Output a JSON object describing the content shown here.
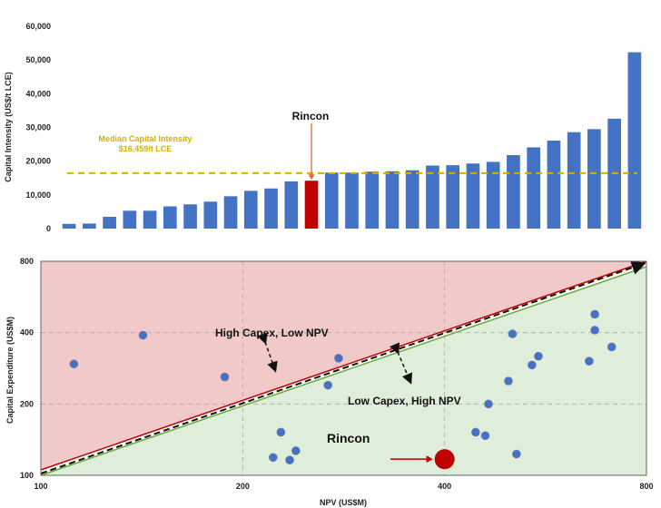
{
  "chart_data": [
    {
      "type": "bar",
      "ylabel": "Capital Intensity (US$/t LCE)",
      "ylim": [
        0,
        60000
      ],
      "yticks": [
        "0",
        "10,000",
        "20,000",
        "30,000",
        "40,000",
        "50,000",
        "60,000"
      ],
      "values": [
        1400,
        1500,
        3500,
        5300,
        5300,
        6600,
        7200,
        8000,
        9600,
        11200,
        11900,
        14000,
        14200,
        16600,
        16600,
        16900,
        17000,
        17300,
        18700,
        18800,
        19300,
        19800,
        21800,
        24100,
        26100,
        28600,
        29500,
        32600,
        52300
      ],
      "highlight_index": 12,
      "colors": {
        "bar": "#4472c4",
        "highlight": "#c00000",
        "median": "#d4b000",
        "callout": "#e8603c"
      },
      "median": {
        "value": 16459,
        "label_line1": "Median Capital Intensity",
        "label_line2": "$16,459/t LCE"
      },
      "callout": "Rincon"
    },
    {
      "type": "scatter",
      "xlabel": "NPV (US$M)",
      "ylabel": "Capital Expenditure (US$M)",
      "xticks": [
        "100",
        "200",
        "400",
        "800"
      ],
      "yticks": [
        "100",
        "200",
        "400",
        "800"
      ],
      "scale": "log",
      "xlim": [
        100,
        800
      ],
      "ylim": [
        100,
        800
      ],
      "points": [
        {
          "x": 112,
          "y": 295
        },
        {
          "x": 142,
          "y": 390
        },
        {
          "x": 188,
          "y": 260
        },
        {
          "x": 228,
          "y": 152
        },
        {
          "x": 222,
          "y": 119
        },
        {
          "x": 235,
          "y": 116
        },
        {
          "x": 240,
          "y": 127
        },
        {
          "x": 268,
          "y": 240
        },
        {
          "x": 278,
          "y": 312
        },
        {
          "x": 445,
          "y": 152
        },
        {
          "x": 460,
          "y": 147
        },
        {
          "x": 465,
          "y": 200
        },
        {
          "x": 498,
          "y": 250
        },
        {
          "x": 505,
          "y": 395
        },
        {
          "x": 512,
          "y": 123
        },
        {
          "x": 540,
          "y": 292
        },
        {
          "x": 552,
          "y": 318
        },
        {
          "x": 657,
          "y": 303
        },
        {
          "x": 670,
          "y": 410
        },
        {
          "x": 670,
          "y": 478
        },
        {
          "x": 710,
          "y": 348
        }
      ],
      "rincon": {
        "x": 400,
        "y": 117,
        "label": "Rincon"
      },
      "regions": {
        "upper": "High Capex, Low NPV",
        "lower": "Low Capex, High NPV"
      },
      "colors": {
        "point": "#4472c4",
        "rincon": "#c00000",
        "upper_fill": "#f2c9c9",
        "lower_fill": "#dfeedb",
        "upper_edge": "#c00000",
        "lower_edge": "#6cab3c",
        "arrow": "#c00000"
      }
    }
  ]
}
